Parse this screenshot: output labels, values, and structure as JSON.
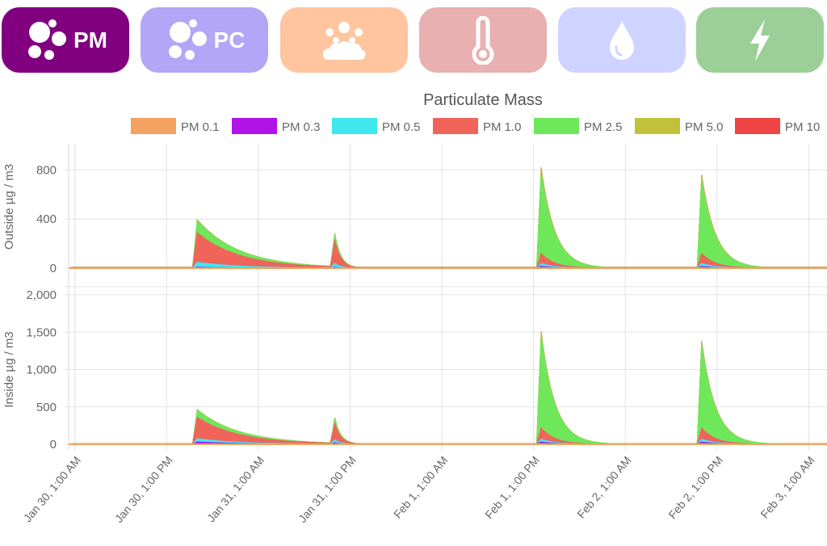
{
  "tabs": [
    {
      "id": "pm",
      "label": "PM",
      "icon": "particles-icon",
      "color": "#800080",
      "active": true
    },
    {
      "id": "pc",
      "label": "PC",
      "icon": "particles-icon",
      "color": "#b3a6f6",
      "active": false
    },
    {
      "id": "aqi",
      "label": "",
      "icon": "cloud-dots-icon",
      "color": "#ffc59e",
      "active": false
    },
    {
      "id": "temp",
      "label": "",
      "icon": "thermometer-icon",
      "color": "#e8b0b0",
      "active": false
    },
    {
      "id": "hum",
      "label": "",
      "icon": "droplet-icon",
      "color": "#cfd3ff",
      "active": false
    },
    {
      "id": "pow",
      "label": "",
      "icon": "lightning-icon",
      "color": "#9ccf98",
      "active": false
    }
  ],
  "chart_data": {
    "type": "area",
    "title": "Particulate Mass",
    "legend_position": "top-center",
    "series": [
      {
        "name": "PM 0.1",
        "color": "#f4a261"
      },
      {
        "name": "PM 0.3",
        "color": "#b012e8"
      },
      {
        "name": "PM 0.5",
        "color": "#3ee8ee"
      },
      {
        "name": "PM 1.0",
        "color": "#f0645a"
      },
      {
        "name": "PM 2.5",
        "color": "#6ee85a"
      },
      {
        "name": "PM 5.0",
        "color": "#c2c23a"
      },
      {
        "name": "PM 10",
        "color": "#ee4444"
      }
    ],
    "x_ticks": [
      "Jan 30, 1:00 AM",
      "Jan 30, 1:00 PM",
      "Jan 31, 1:00 AM",
      "Jan 31, 1:00 PM",
      "Feb 1, 1:00 AM",
      "Feb 1, 1:00 PM",
      "Feb 2, 1:00 AM",
      "Feb 2, 1:00 PM",
      "Feb 3, 1:00 AM"
    ],
    "x_range_hours": [
      -0.5,
      100.5
    ],
    "grid": true,
    "panels": [
      {
        "ylabel": "Outside µg / m3",
        "ylim": [
          0,
          1000
        ],
        "yticks": [
          0,
          400,
          800
        ],
        "events": [
          {
            "t": 16.0,
            "tau": 5.5,
            "values": [
              2,
              8,
              48,
              290,
              390,
              392,
              395
            ]
          },
          {
            "t": 34.0,
            "tau": 0.8,
            "values": [
              2,
              8,
              40,
              230,
              280,
              282,
              285
            ]
          },
          {
            "t": 61.0,
            "tau": 1.8,
            "values": [
              5,
              15,
              40,
              120,
              780,
              810,
              820
            ]
          },
          {
            "t": 82.0,
            "tau": 1.8,
            "values": [
              5,
              15,
              40,
              120,
              720,
              750,
              760
            ]
          }
        ]
      },
      {
        "ylabel": "Inside µg / m3",
        "ylim": [
          0,
          2000
        ],
        "yticks": [
          0,
          500,
          1000,
          1500,
          2000
        ],
        "events": [
          {
            "t": 16.0,
            "tau": 5.5,
            "values": [
              3,
              30,
              75,
              360,
              460,
              462,
              465
            ]
          },
          {
            "t": 34.0,
            "tau": 0.8,
            "values": [
              3,
              20,
              60,
              280,
              350,
              352,
              355
            ]
          },
          {
            "t": 61.0,
            "tau": 1.8,
            "values": [
              8,
              30,
              70,
              220,
              1460,
              1500,
              1510
            ]
          },
          {
            "t": 82.0,
            "tau": 1.8,
            "values": [
              8,
              30,
              70,
              220,
              1340,
              1375,
              1385
            ]
          }
        ]
      }
    ]
  }
}
